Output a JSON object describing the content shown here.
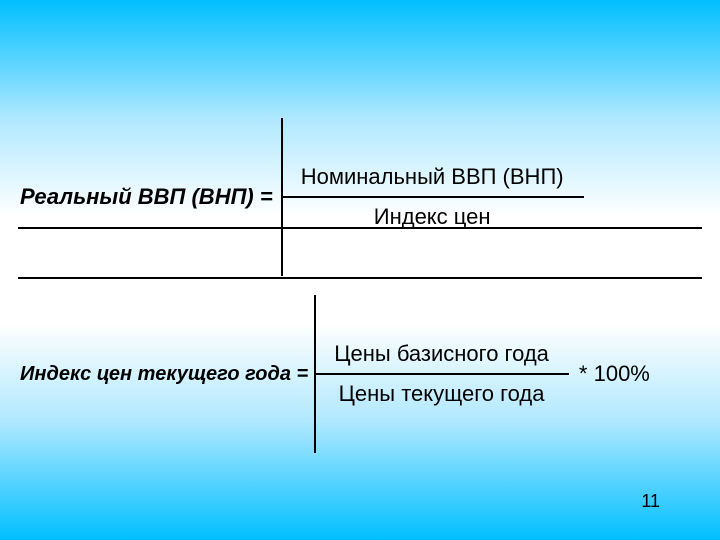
{
  "formula1": {
    "lhs": "Реальный ВВП (ВНП) =",
    "numerator": "Номинальный ВВП (ВНП)",
    "denominator": "Индекс цен"
  },
  "formula2": {
    "lhs": "Индекс цен текущего года =",
    "numerator": "Цены базисного года",
    "denominator": "Цены текущего года",
    "suffix": "* 100%"
  },
  "page_number": "11",
  "colors": {
    "gradient_outer": "#00bfff",
    "gradient_mid": "#b0e8ff",
    "gradient_inner": "#ffffff",
    "text": "#000000",
    "line": "#000000"
  },
  "fontsizes": {
    "lhs1": 22,
    "lhs2": 20,
    "fraction": 22,
    "suffix": 22,
    "page_number": 18
  }
}
